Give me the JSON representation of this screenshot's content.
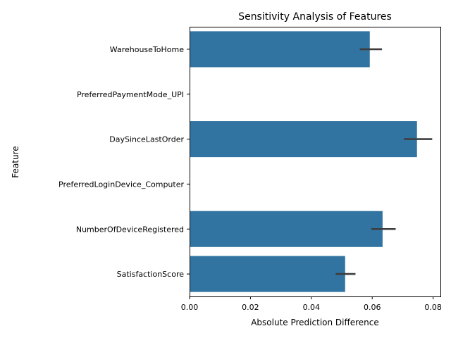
{
  "chart_data": {
    "type": "bar",
    "orientation": "horizontal",
    "title": "Sensitivity Analysis of Features",
    "xlabel": "Absolute Prediction Difference",
    "ylabel": "Feature",
    "categories": [
      "WarehouseToHome",
      "PreferredPaymentMode_UPI",
      "DaySinceLastOrder",
      "PreferredLoginDevice_Computer",
      "NumberOfDeviceRegistered",
      "SatisfactionScore"
    ],
    "values": [
      0.0592,
      0.0,
      0.0747,
      0.0,
      0.0634,
      0.0511
    ],
    "error_low": [
      0.0559,
      0.0,
      0.0704,
      0.0,
      0.0597,
      0.048
    ],
    "error_high": [
      0.0632,
      0.0,
      0.0797,
      0.0,
      0.0677,
      0.0545
    ],
    "xlim": [
      0,
      0.0824
    ],
    "xticks": [
      "0.00",
      "0.02",
      "0.04",
      "0.06",
      "0.08"
    ],
    "xtick_values": [
      0,
      0.02,
      0.04,
      0.06,
      0.08
    ],
    "bar_color": "#3274a1",
    "error_color": "#3d3d3d",
    "grid": false,
    "legend": "none"
  }
}
